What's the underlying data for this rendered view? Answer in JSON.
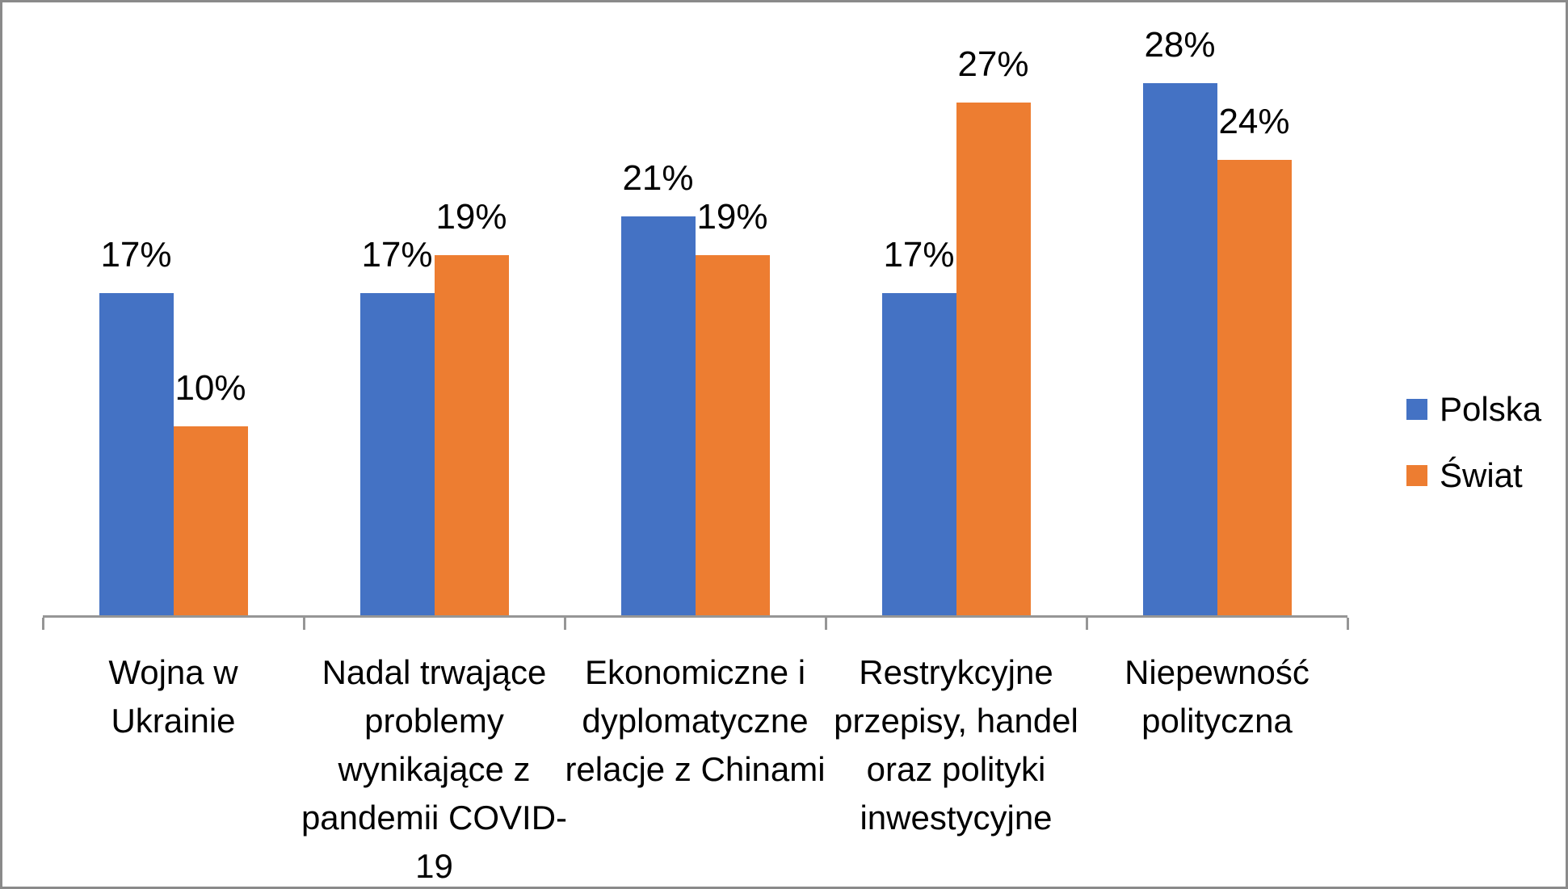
{
  "chart_data": {
    "type": "bar",
    "title": "",
    "xlabel": "",
    "ylabel": "",
    "value_suffix": "%",
    "ylim": [
      0,
      30
    ],
    "grid": false,
    "legend_position": "right",
    "categories": [
      "Wojna w\nUkrainie",
      "Nadal trwające\nproblemy\nwynikające z\npandemii COVID-\n19",
      "Ekonomiczne i\ndyplomatyczne\nrelacje z Chinami",
      "Restrykcyjne\nprzepisy, handel\noraz polityki\ninwestycyjne",
      "Niepewność\npolityczna"
    ],
    "series": [
      {
        "name": "Polska",
        "color": "#4472C4",
        "values": [
          17,
          17,
          21,
          17,
          28
        ]
      },
      {
        "name": "Świat",
        "color": "#ED7D31",
        "values": [
          10,
          19,
          19,
          27,
          24
        ]
      }
    ],
    "colors": {
      "axis": "#969696",
      "text": "#000000",
      "frame_border": "#8a8a8a",
      "background": "#ffffff"
    }
  }
}
